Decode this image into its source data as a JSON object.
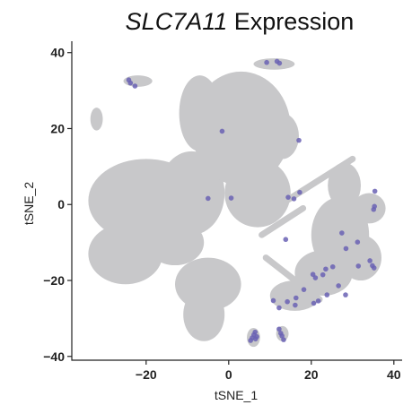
{
  "chart_data": {
    "type": "scatter",
    "title_italic": "SLC7A11",
    "title_rest": " Expression",
    "xlabel": "tSNE_1",
    "ylabel": "tSNE_2",
    "xlim": [
      -38,
      42
    ],
    "ylim": [
      -41,
      43
    ],
    "xticks": [
      -20,
      0,
      20,
      40
    ],
    "yticks": [
      -40,
      -20,
      0,
      20,
      40
    ],
    "grid": false,
    "colors": {
      "background_cells": "#c8c8ca",
      "expressing_cells": "#6a61b4",
      "axis": "#222222"
    },
    "background_clusters": [
      {
        "cx": -20,
        "cy": 1,
        "rx": 14,
        "ry": 11
      },
      {
        "cx": -9,
        "cy": 3,
        "rx": 8,
        "ry": 11
      },
      {
        "cx": -25,
        "cy": -13,
        "rx": 9,
        "ry": 8
      },
      {
        "cx": -13,
        "cy": -10,
        "rx": 7,
        "ry": 6
      },
      {
        "cx": 3,
        "cy": 20,
        "rx": 12,
        "ry": 15
      },
      {
        "cx": -7,
        "cy": 24,
        "rx": 5,
        "ry": 10
      },
      {
        "cx": 7,
        "cy": 3,
        "rx": 8,
        "ry": 9
      },
      {
        "cx": 13,
        "cy": 18,
        "rx": 4,
        "ry": 6
      },
      {
        "cx": -5,
        "cy": -21,
        "rx": 8,
        "ry": 7
      },
      {
        "cx": -6,
        "cy": -29,
        "rx": 5,
        "ry": 7
      },
      {
        "cx": -22,
        "cy": 32.5,
        "rx": 3.5,
        "ry": 1.5
      },
      {
        "cx": -32,
        "cy": 22.5,
        "rx": 1.5,
        "ry": 3
      },
      {
        "cx": 11,
        "cy": 37,
        "rx": 5,
        "ry": 1.5
      },
      {
        "cx": 28,
        "cy": 5,
        "rx": 4,
        "ry": 6
      },
      {
        "cx": 27,
        "cy": -8,
        "rx": 7,
        "ry": 10
      },
      {
        "cx": 32,
        "cy": -14,
        "rx": 5,
        "ry": 6
      },
      {
        "cx": 23,
        "cy": -18,
        "rx": 7,
        "ry": 6
      },
      {
        "cx": 16,
        "cy": -24,
        "rx": 6,
        "ry": 4
      },
      {
        "cx": 34,
        "cy": -1,
        "rx": 4,
        "ry": 4
      },
      {
        "cx": 6,
        "cy": -35,
        "rx": 1.6,
        "ry": 2.5
      },
      {
        "cx": 13,
        "cy": -34,
        "rx": 1.5,
        "ry": 2
      }
    ],
    "background_streaks": [
      {
        "x1": 14,
        "y1": 1,
        "x2": 30,
        "y2": 12
      },
      {
        "x1": 8,
        "y1": -8,
        "x2": 18,
        "y2": -1
      },
      {
        "x1": 9,
        "y1": -14,
        "x2": 22,
        "y2": -25
      }
    ],
    "expressing_points": [
      {
        "x": -24.2,
        "y": 32.8
      },
      {
        "x": -23.8,
        "y": 32.0
      },
      {
        "x": -22.7,
        "y": 31.2
      },
      {
        "x": 9.2,
        "y": 37.4
      },
      {
        "x": 11.7,
        "y": 37.7
      },
      {
        "x": 12.3,
        "y": 37.2
      },
      {
        "x": -1.6,
        "y": 19.3
      },
      {
        "x": 17.0,
        "y": 16.9
      },
      {
        "x": -5.0,
        "y": 1.6
      },
      {
        "x": 0.6,
        "y": 1.7
      },
      {
        "x": 14.4,
        "y": 1.9
      },
      {
        "x": 17.2,
        "y": 3.2
      },
      {
        "x": 15.8,
        "y": 1.5
      },
      {
        "x": 35.4,
        "y": 3.5
      },
      {
        "x": 35.3,
        "y": -0.5
      },
      {
        "x": 35.1,
        "y": -1.3
      },
      {
        "x": 13.8,
        "y": -9.2
      },
      {
        "x": 27.4,
        "y": -7.5
      },
      {
        "x": 31.2,
        "y": -9.9
      },
      {
        "x": 28.4,
        "y": -11.6
      },
      {
        "x": 34.2,
        "y": -14.8
      },
      {
        "x": 34.8,
        "y": -16.1
      },
      {
        "x": 35.2,
        "y": -16.7
      },
      {
        "x": 31.4,
        "y": -16.2
      },
      {
        "x": 25.2,
        "y": -16.4
      },
      {
        "x": 23.5,
        "y": -17.0
      },
      {
        "x": 22.8,
        "y": -18.5
      },
      {
        "x": 20.4,
        "y": -18.4
      },
      {
        "x": 21.0,
        "y": -19.3
      },
      {
        "x": 26.6,
        "y": -21.4
      },
      {
        "x": 18.2,
        "y": -22.4
      },
      {
        "x": 16.3,
        "y": -24.6
      },
      {
        "x": 14.2,
        "y": -25.6
      },
      {
        "x": 20.6,
        "y": -26.0
      },
      {
        "x": 12.2,
        "y": -27.2
      },
      {
        "x": 10.8,
        "y": -25.3
      },
      {
        "x": 16.1,
        "y": -26.5
      },
      {
        "x": 21.7,
        "y": -25.4
      },
      {
        "x": 23.8,
        "y": -23.8
      },
      {
        "x": 28.3,
        "y": -23.8
      },
      {
        "x": 6.4,
        "y": -33.6
      },
      {
        "x": 6.1,
        "y": -34.3
      },
      {
        "x": 5.7,
        "y": -35.1
      },
      {
        "x": 6.8,
        "y": -34.8
      },
      {
        "x": 5.3,
        "y": -35.8
      },
      {
        "x": 6.5,
        "y": -35.4
      },
      {
        "x": 12.2,
        "y": -32.8
      },
      {
        "x": 12.6,
        "y": -33.9
      },
      {
        "x": 12.9,
        "y": -34.6
      },
      {
        "x": 13.3,
        "y": -35.6
      }
    ]
  }
}
